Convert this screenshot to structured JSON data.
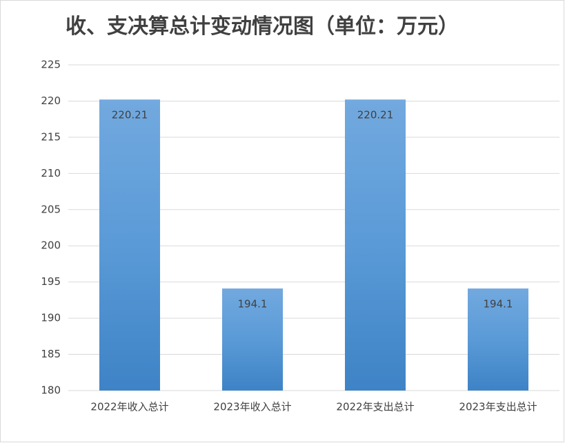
{
  "chart_data": {
    "type": "bar",
    "title": "收、支决算总计变动情况图（单位：万元）",
    "categories": [
      "2022年收入总计",
      "2023年收入总计",
      "2022年支出总计",
      "2023年支出总计"
    ],
    "values": [
      220.21,
      194.1,
      220.21,
      194.1
    ],
    "color": "#5b9bd5",
    "ylim": [
      180,
      225
    ],
    "yticks": [
      180,
      185,
      190,
      195,
      200,
      205,
      210,
      215,
      220,
      225
    ],
    "grid": true,
    "data_labels": true
  }
}
